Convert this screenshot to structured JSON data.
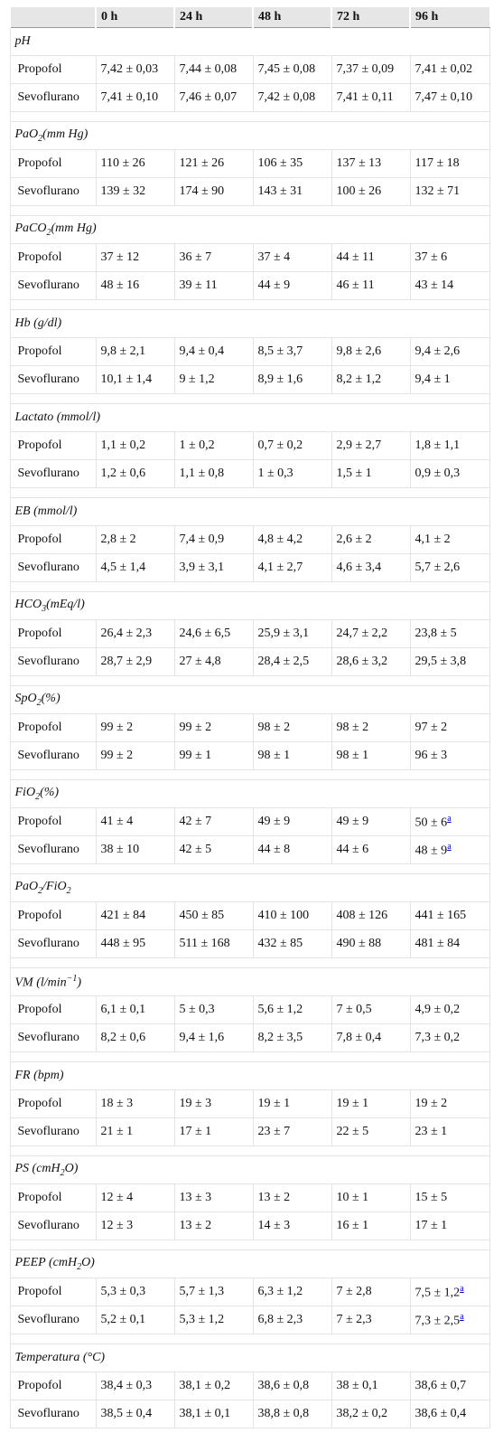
{
  "table": {
    "columns": [
      "0 h",
      "24 h",
      "48 h",
      "72 h",
      "96 h"
    ],
    "sections": [
      {
        "label": [
          {
            "text": "pH"
          }
        ],
        "rows": [
          {
            "name": "Propofol",
            "cells": [
              "7,42 ± 0,03",
              "7,44 ± 0,08",
              "7,45 ± 0,08",
              "7,37 ± 0,09",
              "7,41 ± 0,02"
            ]
          },
          {
            "name": "Sevoflurano",
            "cells": [
              "7,41 ± 0,10",
              "7,46 ± 0,07",
              "7,42 ± 0,08",
              "7,41 ± 0,11",
              "7,47 ± 0,10"
            ]
          }
        ]
      },
      {
        "label": [
          {
            "text": "PaO"
          },
          {
            "sub": "2"
          },
          {
            "text": "(mm Hg)"
          }
        ],
        "rows": [
          {
            "name": "Propofol",
            "cells": [
              "110 ± 26",
              "121 ± 26",
              "106 ± 35",
              "137 ± 13",
              "117 ± 18"
            ]
          },
          {
            "name": "Sevoflurano",
            "cells": [
              "139 ± 32",
              "174 ± 90",
              "143 ± 31",
              "100 ± 26",
              "132 ± 71"
            ]
          }
        ]
      },
      {
        "label": [
          {
            "text": "PaCO"
          },
          {
            "sub": "2"
          },
          {
            "text": "(mm Hg)"
          }
        ],
        "rows": [
          {
            "name": "Propofol",
            "cells": [
              "37 ± 12",
              "36 ± 7",
              "37 ± 4",
              "44 ± 11",
              "37 ± 6"
            ]
          },
          {
            "name": "Sevoflurano",
            "cells": [
              "48 ± 16",
              "39 ± 11",
              "44 ± 9",
              "46 ± 11",
              "43 ± 14"
            ]
          }
        ]
      },
      {
        "label": [
          {
            "text": "Hb (g/dl)"
          }
        ],
        "rows": [
          {
            "name": "Propofol",
            "cells": [
              "9,8 ± 2,1",
              "9,4 ± 0,4",
              "8,5 ± 3,7",
              "9,8 ± 2,6",
              "9,4 ± 2,6"
            ]
          },
          {
            "name": "Sevoflurano",
            "cells": [
              "10,1 ± 1,4",
              "9 ± 1,2",
              "8,9 ± 1,6",
              "8,2 ± 1,2",
              "9,4 ± 1"
            ]
          }
        ]
      },
      {
        "label": [
          {
            "text": "Lactato (mmol/l)"
          }
        ],
        "rows": [
          {
            "name": "Propofol",
            "cells": [
              "1,1 ± 0,2",
              "1 ± 0,2",
              "0,7 ± 0,2",
              "2,9 ± 2,7",
              "1,8 ± 1,1"
            ]
          },
          {
            "name": "Sevoflurano",
            "cells": [
              "1,2 ± 0,6",
              "1,1 ± 0,8",
              "1 ± 0,3",
              "1,5 ± 1",
              "0,9 ± 0,3"
            ]
          }
        ]
      },
      {
        "label": [
          {
            "text": "EB (mmol/l)"
          }
        ],
        "rows": [
          {
            "name": "Propofol",
            "cells": [
              "2,8 ± 2",
              "7,4 ± 0,9",
              "4,8 ± 4,2",
              "2,6 ± 2",
              "4,1 ± 2"
            ]
          },
          {
            "name": "Sevoflurano",
            "cells": [
              "4,5 ± 1,4",
              "3,9 ± 3,1",
              "4,1 ± 2,7",
              "4,6 ± 3,4",
              "5,7 ± 2,6"
            ]
          }
        ]
      },
      {
        "label": [
          {
            "text": "HCO"
          },
          {
            "sub": "3"
          },
          {
            "text": "(mEq/l)"
          }
        ],
        "rows": [
          {
            "name": "Propofol",
            "cells": [
              "26,4 ± 2,3",
              "24,6 ± 6,5",
              "25,9 ± 3,1",
              "24,7 ± 2,2",
              "23,8 ± 5"
            ]
          },
          {
            "name": "Sevoflurano",
            "cells": [
              "28,7 ± 2,9",
              "27 ± 4,8",
              "28,4 ± 2,5",
              "28,6 ± 3,2",
              "29,5 ± 3,8"
            ]
          }
        ]
      },
      {
        "label": [
          {
            "text": "SpO"
          },
          {
            "sub": "2"
          },
          {
            "text": "(%)"
          }
        ],
        "rows": [
          {
            "name": "Propofol",
            "cells": [
              "99 ± 2",
              "99 ± 2",
              "98 ± 2",
              "98 ± 2",
              "97 ± 2"
            ]
          },
          {
            "name": "Sevoflurano",
            "cells": [
              "99 ± 2",
              "99 ± 1",
              "98 ± 1",
              "98 ± 1",
              "96 ± 3"
            ]
          }
        ]
      },
      {
        "label": [
          {
            "text": "FiO"
          },
          {
            "sub": "2"
          },
          {
            "text": "(%)"
          }
        ],
        "rows": [
          {
            "name": "Propofol",
            "cells": [
              "41 ± 4",
              "42 ± 7",
              "49 ± 9",
              "49 ± 9",
              {
                "text": "50 ± 6",
                "note": "a"
              }
            ]
          },
          {
            "name": "Sevoflurano",
            "cells": [
              "38 ± 10",
              "42 ± 5",
              "44 ± 8",
              "44 ± 6",
              {
                "text": "48 ± 9",
                "note": "a"
              }
            ]
          }
        ]
      },
      {
        "label": [
          {
            "text": "PaO"
          },
          {
            "sub": "2"
          },
          {
            "text": "/FiO"
          },
          {
            "sub": "2"
          }
        ],
        "rows": [
          {
            "name": "Propofol",
            "cells": [
              "421 ± 84",
              "450 ± 85",
              "410 ± 100",
              "408 ± 126",
              "441 ± 165"
            ]
          },
          {
            "name": "Sevoflurano",
            "cells": [
              "448 ± 95",
              "511 ± 168",
              "432 ± 85",
              "490 ± 88",
              "481 ± 84"
            ]
          }
        ]
      },
      {
        "label": [
          {
            "text": "VM (l/min"
          },
          {
            "sup": "−1"
          },
          {
            "text": ")"
          }
        ],
        "rows": [
          {
            "name": "Propofol",
            "cells": [
              "6,1 ± 0,1",
              "5 ± 0,3",
              "5,6 ± 1,2",
              "7 ± 0,5",
              "4,9 ± 0,2"
            ]
          },
          {
            "name": "Sevoflurano",
            "cells": [
              "8,2 ± 0,6",
              "9,4 ± 1,6",
              "8,2 ± 3,5",
              "7,8 ± 0,4",
              "7,3 ± 0,2"
            ]
          }
        ]
      },
      {
        "label": [
          {
            "text": "FR (bpm)"
          }
        ],
        "rows": [
          {
            "name": "Propofol",
            "cells": [
              "18 ± 3",
              "19 ± 3",
              "19 ± 1",
              "19 ± 1",
              "19 ± 2"
            ]
          },
          {
            "name": "Sevoflurano",
            "cells": [
              "21 ± 1",
              "17 ± 1",
              "23 ± 7",
              "22 ± 5",
              "23 ± 1"
            ]
          }
        ]
      },
      {
        "label": [
          {
            "text": "PS (cmH"
          },
          {
            "sub": "2"
          },
          {
            "text": "O)"
          }
        ],
        "rows": [
          {
            "name": "Propofol",
            "cells": [
              "12 ± 4",
              "13 ± 3",
              "13 ± 2",
              "10 ± 1",
              "15 ± 5"
            ]
          },
          {
            "name": "Sevoflurano",
            "cells": [
              "12 ± 3",
              "13 ± 2",
              "14 ± 3",
              "16 ± 1",
              "17 ± 1"
            ]
          }
        ]
      },
      {
        "label": [
          {
            "text": "PEEP (cmH"
          },
          {
            "sub": "2"
          },
          {
            "text": "O)"
          }
        ],
        "rows": [
          {
            "name": "Propofol",
            "cells": [
              "5,3 ± 0,3",
              "5,7 ± 1,3",
              "6,3 ± 1,2",
              "7 ± 2,8",
              {
                "text": "7,5 ± 1,2",
                "note": "a"
              }
            ]
          },
          {
            "name": "Sevoflurano",
            "cells": [
              "5,2 ± 0,1",
              "5,3 ± 1,2",
              "6,8 ± 2,3",
              "7 ± 2,3",
              {
                "text": "7,3 ± 2,5",
                "note": "a"
              }
            ]
          }
        ]
      },
      {
        "label": [
          {
            "text": "Temperatura (°C)"
          }
        ],
        "rows": [
          {
            "name": "Propofol",
            "cells": [
              "38,4 ± 0,3",
              "38,1 ± 0,2",
              "38,6 ± 0,8",
              "38 ± 0,1",
              "38,6 ± 0,7"
            ]
          },
          {
            "name": "Sevoflurano",
            "cells": [
              "38,5 ± 0,4",
              "38,1 ± 0,1",
              "38,8 ± 0,8",
              "38,2 ± 0,2",
              "38,6 ± 0,4"
            ]
          }
        ]
      }
    ]
  }
}
